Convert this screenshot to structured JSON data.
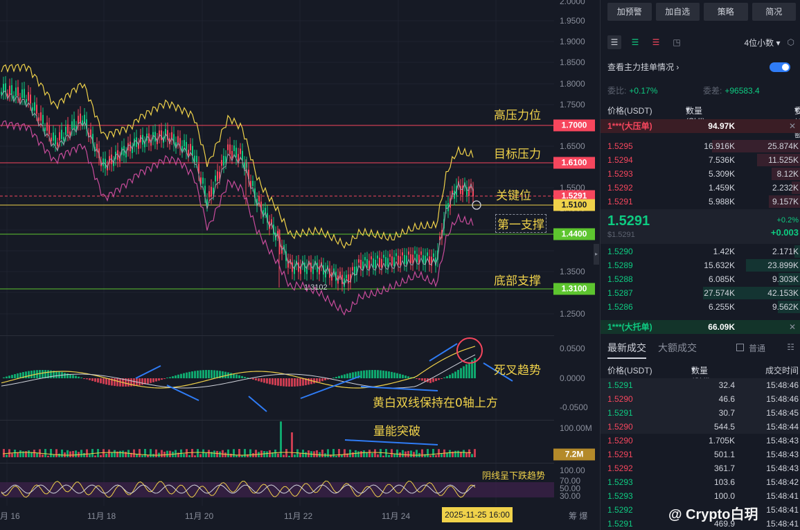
{
  "chart": {
    "y_axis_labels": [
      "2.0000",
      "1.9500",
      "1.9000",
      "1.8500",
      "1.8000",
      "1.7500",
      "1.6500",
      "1.5500",
      "1.4500",
      "1.3500",
      "1.2500"
    ],
    "price_tags": [
      {
        "text": "1.7000",
        "bg": "#f6465d",
        "fg": "#ffffff",
        "line": "#f6465d"
      },
      {
        "text": "1.6100",
        "bg": "#f6465d",
        "fg": "#ffffff",
        "line": "#f6465d"
      },
      {
        "text": "1.5291",
        "bg": "#f6465d",
        "fg": "#ffffff",
        "line": "#f6465d"
      },
      {
        "text": "1.5100",
        "bg": "#f0d24a",
        "fg": "#161a25",
        "line": "#f0d24a"
      },
      {
        "text": "1.4400",
        "bg": "#5dc52f",
        "fg": "#ffffff",
        "line": "#5dc52f"
      },
      {
        "text": "1.3100",
        "bg": "#5dc52f",
        "fg": "#ffffff",
        "line": "#5dc52f"
      }
    ],
    "annotations": {
      "resistance_high": "高压力位",
      "target_resistance": "目标压力",
      "key_level": "关键位",
      "first_support": "第一支撑",
      "bottom_support": "底部支撑",
      "death_cross": "死叉趋势",
      "yellow_white_lines": "黄白双线保持在0轴上方",
      "volume_breakout": "量能突破",
      "bearish_candles": "阴线呈下跌趋势"
    },
    "low_marker": "1.3102",
    "macd_axis": [
      "0.0500",
      "0.0000",
      "-0.0500"
    ],
    "volume_axis": "100.00M",
    "volume_tag": "7.2M",
    "rsi_axis": [
      "100.00",
      "70.00",
      "50.00",
      "30.00"
    ],
    "x_labels": [
      "月 16",
      "11月 18",
      "11月 20",
      "11月 22",
      "11月 24"
    ],
    "cursor_time": "2025-11-25 16:00",
    "bottom_hint": "筹 爆"
  },
  "panel": {
    "buttons": [
      "加预警",
      "加自选",
      "策略",
      "简况"
    ],
    "precision": "4位小数",
    "main_orders_label": "查看主力挂单情况",
    "ratio_label": "委比:",
    "ratio_value": "+0.17%",
    "diff_label": "委差:",
    "diff_value": "+96583.4",
    "headers": {
      "price": "价格(USDT)",
      "qty": "数量 (SUI)",
      "total": "委托额"
    },
    "big_ask": {
      "label": "1***(大压单)",
      "qty": "94.97K"
    },
    "asks": [
      {
        "price": "1.5295",
        "qty": "16.916K",
        "total": "25.874K",
        "depth": 0.62
      },
      {
        "price": "1.5294",
        "qty": "7.536K",
        "total": "11.525K",
        "depth": 0.3
      },
      {
        "price": "1.5293",
        "qty": "5.309K",
        "total": "8.12K",
        "depth": 0.2
      },
      {
        "price": "1.5292",
        "qty": "1.459K",
        "total": "2.232K",
        "depth": 0.06
      },
      {
        "price": "1.5291",
        "qty": "5.988K",
        "total": "9.157K",
        "depth": 0.22
      }
    ],
    "last_price": "1.5291",
    "last_usd": "$1.5291",
    "change_pct": "+0.2%",
    "change_abs": "+0.003",
    "bids": [
      {
        "price": "1.5290",
        "qty": "1.42K",
        "total": "2.171K",
        "depth": 0.06
      },
      {
        "price": "1.5289",
        "qty": "15.632K",
        "total": "23.899K",
        "depth": 0.56
      },
      {
        "price": "1.5288",
        "qty": "6.085K",
        "total": "9.303K",
        "depth": 0.22
      },
      {
        "price": "1.5287",
        "qty": "27.574K",
        "total": "42.153K",
        "depth": 1.0
      },
      {
        "price": "1.5286",
        "qty": "6.255K",
        "total": "9.562K",
        "depth": 0.23
      }
    ],
    "big_bid": {
      "label": "1***(大托单)",
      "qty": "66.09K"
    },
    "trade_tabs": {
      "latest": "最新成交",
      "large": "大额成交",
      "normal": "普通"
    },
    "trade_headers": {
      "price": "价格(USDT)",
      "qty": "数量(SUI)",
      "time": "成交时间"
    },
    "trades": [
      {
        "price": "1.5291",
        "qty": "32.4",
        "time": "15:48:46",
        "side": "up"
      },
      {
        "price": "1.5290",
        "qty": "46.6",
        "time": "15:48:46",
        "side": "dn"
      },
      {
        "price": "1.5291",
        "qty": "30.7",
        "time": "15:48:45",
        "side": "up"
      },
      {
        "price": "1.5290",
        "qty": "544.5",
        "time": "15:48:44",
        "side": "dn"
      },
      {
        "price": "1.5290",
        "qty": "1.705K",
        "time": "15:48:43",
        "side": "dn"
      },
      {
        "price": "1.5291",
        "qty": "501.1",
        "time": "15:48:43",
        "side": "dn"
      },
      {
        "price": "1.5292",
        "qty": "361.7",
        "time": "15:48:43",
        "side": "dn"
      },
      {
        "price": "1.5293",
        "qty": "103.6",
        "time": "15:48:42",
        "side": "up"
      },
      {
        "price": "1.5293",
        "qty": "100.0",
        "time": "15:48:41",
        "side": "up"
      },
      {
        "price": "1.5292",
        "qty": "",
        "time": "15:48:41",
        "side": "up"
      },
      {
        "price": "1.5291",
        "qty": "469.9",
        "time": "15:48:41",
        "side": "up"
      }
    ],
    "watermark": "@ Crypto白玥"
  }
}
